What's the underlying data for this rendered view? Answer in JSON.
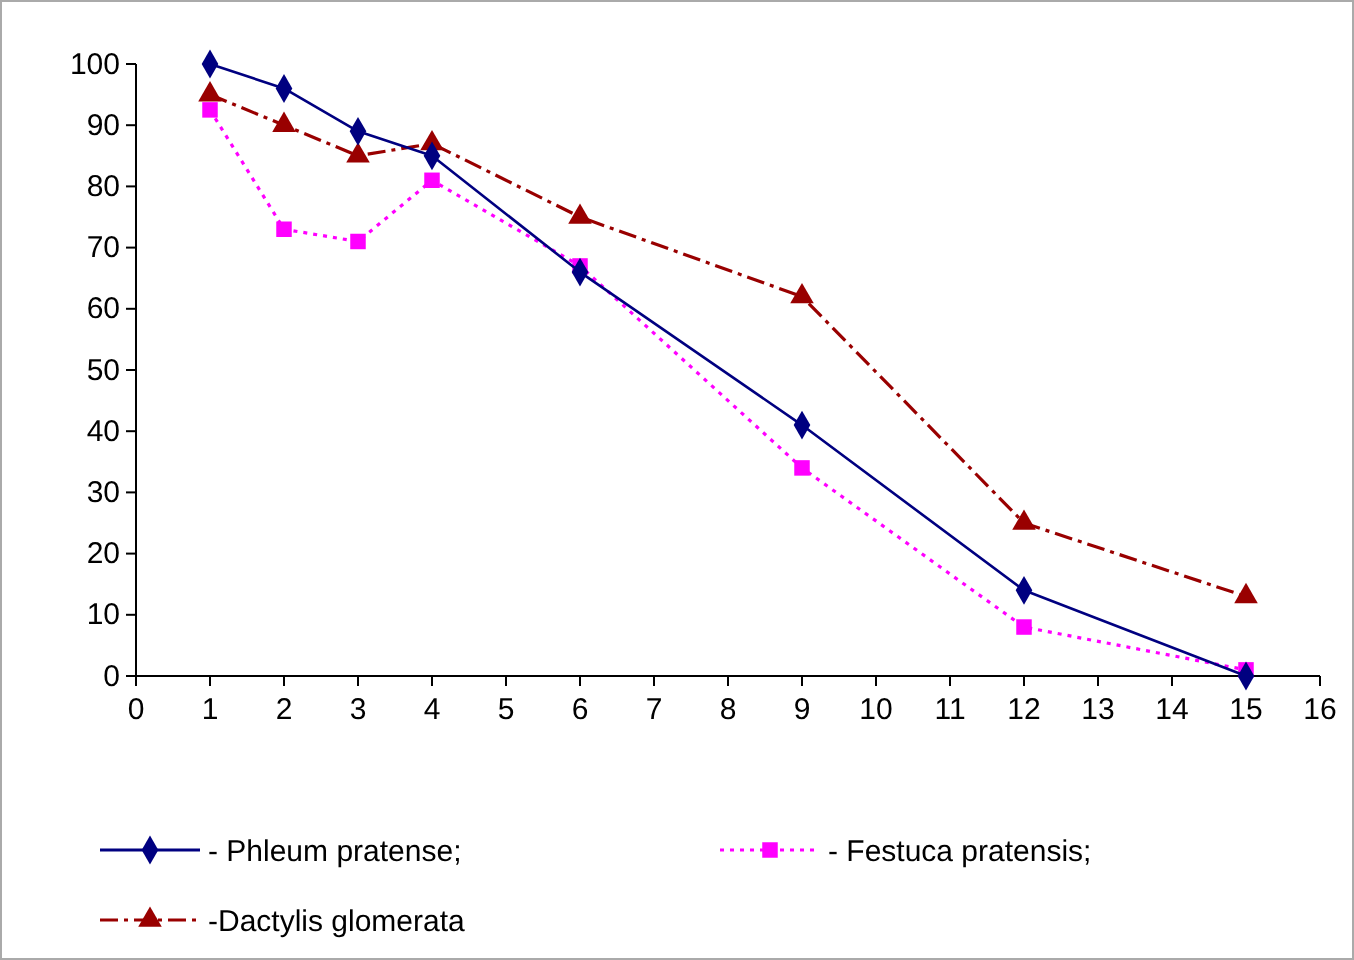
{
  "chart_data": {
    "type": "line",
    "x": [
      1,
      2,
      3,
      4,
      6,
      9,
      12,
      15
    ],
    "series": [
      {
        "name": "- Phleum pratense;",
        "color": "#000080",
        "marker": "diamond",
        "line_style": "solid",
        "values": [
          100,
          96,
          89,
          85,
          66,
          41,
          14,
          0
        ]
      },
      {
        "name": "- Festuca pratensis;",
        "color": "#ff00ff",
        "marker": "square",
        "line_style": "dotted",
        "values": [
          92.5,
          73,
          71,
          81,
          67,
          34,
          8,
          1
        ]
      },
      {
        "name": "-Dactylis glomerata",
        "color": "#990000",
        "marker": "triangle",
        "line_style": "dashed",
        "values": [
          95,
          90,
          85,
          87,
          75,
          62,
          25,
          13
        ]
      }
    ],
    "xlim": [
      0,
      16
    ],
    "xticks": [
      0,
      1,
      2,
      3,
      4,
      5,
      6,
      7,
      8,
      9,
      10,
      11,
      12,
      13,
      14,
      15,
      16
    ],
    "ylim": [
      0,
      100
    ],
    "yticks": [
      0,
      10,
      20,
      30,
      40,
      50,
      60,
      70,
      80,
      90,
      100
    ],
    "grid": false,
    "legend": "bottom"
  }
}
